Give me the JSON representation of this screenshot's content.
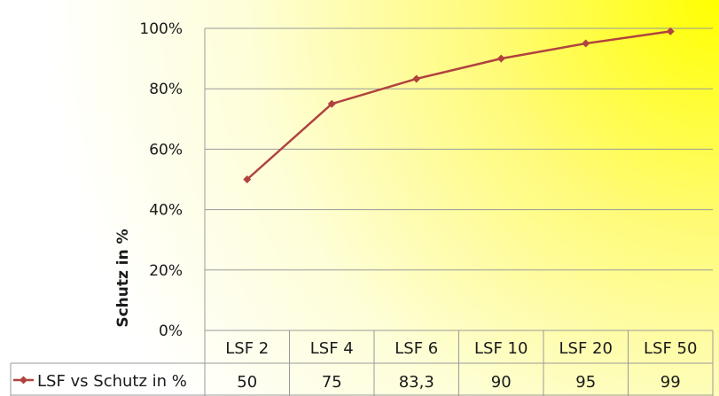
{
  "chart_data": {
    "type": "line",
    "categories": [
      "LSF 2",
      "LSF 4",
      "LSF 6",
      "LSF 10",
      "LSF 20",
      "LSF 50"
    ],
    "series": [
      {
        "name": "LSF vs Schutz in %",
        "values": [
          50,
          75,
          83.3,
          90,
          95,
          99
        ],
        "table_values": [
          "50",
          "75",
          "83,3",
          "90",
          "95",
          "99"
        ]
      }
    ],
    "ylabel": "Schutz in %",
    "xlabel": "",
    "ylim": [
      0,
      100
    ],
    "yticks": [
      "0%",
      "20%",
      "40%",
      "60%",
      "80%",
      "100%"
    ],
    "grid": true,
    "legend": "data-table-left",
    "colors": {
      "series": "#b0423f",
      "grid": "#9a9a9a",
      "background_gradient_start": "#ffffff",
      "background_gradient_end": "#ffff00"
    }
  }
}
